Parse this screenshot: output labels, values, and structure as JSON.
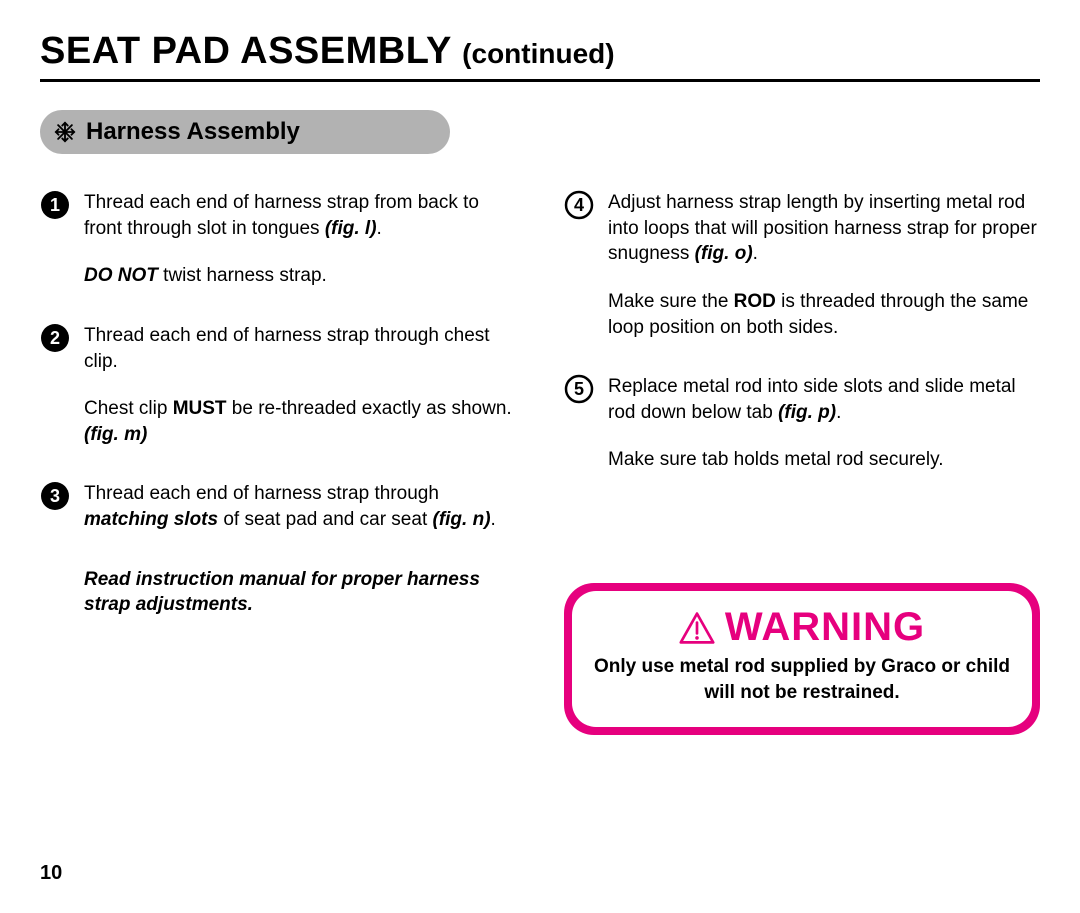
{
  "title_main": "SEAT PAD ASSEMBLY ",
  "title_cont": "(continued)",
  "section_label": "Harness Assembly",
  "page_number": "10",
  "colors": {
    "accent": "#e6007e",
    "pill_bg": "#b2b2b2",
    "text": "#000000",
    "bg": "#ffffff"
  },
  "steps_left": [
    {
      "n": "1",
      "filled": true,
      "paras": [
        [
          {
            "t": "Thread each end of harness strap from back to front through slot in tongues "
          },
          {
            "t": "(fig. l)",
            "cls": "bi"
          },
          {
            "t": "."
          }
        ],
        [
          {
            "t": "DO NOT",
            "cls": "bi"
          },
          {
            "t": " twist harness strap."
          }
        ]
      ]
    },
    {
      "n": "2",
      "filled": true,
      "paras": [
        [
          {
            "t": "Thread each end of harness strap through chest clip."
          }
        ],
        [
          {
            "t": "Chest clip "
          },
          {
            "t": "MUST",
            "cls": "b"
          },
          {
            "t": " be re-threaded exactly as shown. "
          },
          {
            "t": "(fig. m)",
            "cls": "bi"
          }
        ]
      ]
    },
    {
      "n": "3",
      "filled": true,
      "paras": [
        [
          {
            "t": "Thread each end of harness strap through "
          },
          {
            "t": "matching slots",
            "cls": "bi"
          },
          {
            "t": " of seat pad and car seat "
          },
          {
            "t": "(fig. n)",
            "cls": "bi"
          },
          {
            "t": "."
          }
        ]
      ]
    }
  ],
  "read_note": "Read instruction manual for proper harness strap adjustments.",
  "steps_right": [
    {
      "n": "4",
      "filled": false,
      "paras": [
        [
          {
            "t": "Adjust harness strap length by inserting metal rod into loops that will position harness strap for proper snugness "
          },
          {
            "t": "(fig. o)",
            "cls": "bi"
          },
          {
            "t": "."
          }
        ],
        [
          {
            "t": "Make sure the "
          },
          {
            "t": "ROD",
            "cls": "b"
          },
          {
            "t": " is threaded through the same loop position on both sides."
          }
        ]
      ]
    },
    {
      "n": "5",
      "filled": false,
      "paras": [
        [
          {
            "t": "Replace metal rod into side slots and slide metal rod down below tab "
          },
          {
            "t": "(fig. p)",
            "cls": "bi"
          },
          {
            "t": "."
          }
        ],
        [
          {
            "t": "Make sure tab holds metal rod securely."
          }
        ]
      ]
    }
  ],
  "warning": {
    "head": "WARNING",
    "text": "Only use metal rod supplied by Graco or child will not be restrained."
  }
}
